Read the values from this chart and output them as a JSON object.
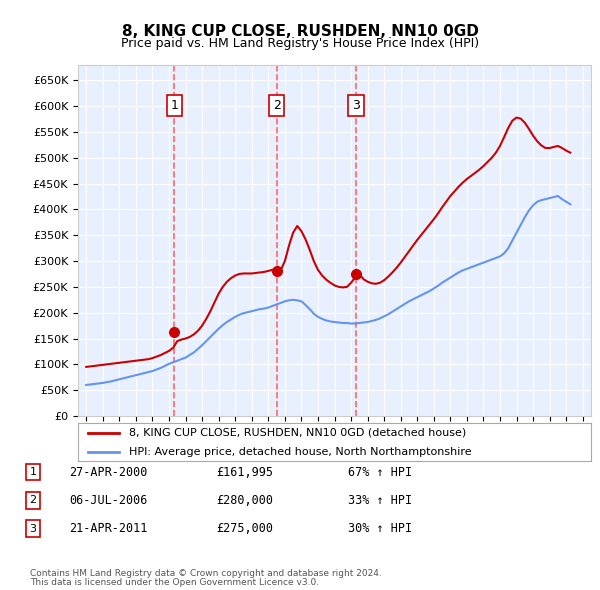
{
  "title": "8, KING CUP CLOSE, RUSHDEN, NN10 0GD",
  "subtitle": "Price paid vs. HM Land Registry's House Price Index (HPI)",
  "legend_line1": "8, KING CUP CLOSE, RUSHDEN, NN10 0GD (detached house)",
  "legend_line2": "HPI: Average price, detached house, North Northamptonshire",
  "footnote1": "Contains HM Land Registry data © Crown copyright and database right 2024.",
  "footnote2": "This data is licensed under the Open Government Licence v3.0.",
  "transactions": [
    {
      "num": 1,
      "date": "27-APR-2000",
      "price": "£161,995",
      "change": "67% ↑ HPI",
      "year": 2000.32,
      "price_val": 161995
    },
    {
      "num": 2,
      "date": "06-JUL-2006",
      "price": "£280,000",
      "change": "33% ↑ HPI",
      "year": 2006.51,
      "price_val": 280000
    },
    {
      "num": 3,
      "date": "21-APR-2011",
      "price": "£275,000",
      "change": "30% ↑ HPI",
      "year": 2011.3,
      "price_val": 275000
    }
  ],
  "hpi_color": "#6495ED",
  "price_color": "#CC0000",
  "vline_color": "#FF6666",
  "background_color": "#E8F0FF",
  "grid_color": "#FFFFFF",
  "ylim": [
    0,
    680000
  ],
  "xlim_start": 1994.5,
  "xlim_end": 2025.5,
  "hpi_x": [
    1995.0,
    1995.25,
    1995.5,
    1995.75,
    1996.0,
    1996.25,
    1996.5,
    1996.75,
    1997.0,
    1997.25,
    1997.5,
    1997.75,
    1998.0,
    1998.25,
    1998.5,
    1998.75,
    1999.0,
    1999.25,
    1999.5,
    1999.75,
    2000.0,
    2000.25,
    2000.5,
    2000.75,
    2001.0,
    2001.25,
    2001.5,
    2001.75,
    2002.0,
    2002.25,
    2002.5,
    2002.75,
    2003.0,
    2003.25,
    2003.5,
    2003.75,
    2004.0,
    2004.25,
    2004.5,
    2004.75,
    2005.0,
    2005.25,
    2005.5,
    2005.75,
    2006.0,
    2006.25,
    2006.5,
    2006.75,
    2007.0,
    2007.25,
    2007.5,
    2007.75,
    2008.0,
    2008.25,
    2008.5,
    2008.75,
    2009.0,
    2009.25,
    2009.5,
    2009.75,
    2010.0,
    2010.25,
    2010.5,
    2010.75,
    2011.0,
    2011.25,
    2011.5,
    2011.75,
    2012.0,
    2012.25,
    2012.5,
    2012.75,
    2013.0,
    2013.25,
    2013.5,
    2013.75,
    2014.0,
    2014.25,
    2014.5,
    2014.75,
    2015.0,
    2015.25,
    2015.5,
    2015.75,
    2016.0,
    2016.25,
    2016.5,
    2016.75,
    2017.0,
    2017.25,
    2017.5,
    2017.75,
    2018.0,
    2018.25,
    2018.5,
    2018.75,
    2019.0,
    2019.25,
    2019.5,
    2019.75,
    2020.0,
    2020.25,
    2020.5,
    2020.75,
    2021.0,
    2021.25,
    2021.5,
    2021.75,
    2022.0,
    2022.25,
    2022.5,
    2022.75,
    2023.0,
    2023.25,
    2023.5,
    2023.75,
    2024.0,
    2024.25
  ],
  "hpi_y": [
    60000,
    61000,
    62000,
    63000,
    64000,
    65500,
    67000,
    69000,
    71000,
    73000,
    75000,
    77000,
    79000,
    81000,
    83000,
    85000,
    87000,
    90000,
    93000,
    97000,
    101000,
    104000,
    107000,
    110000,
    113000,
    118000,
    123000,
    130000,
    137000,
    145000,
    153000,
    161000,
    169000,
    176000,
    182000,
    187000,
    192000,
    196000,
    199000,
    201000,
    203000,
    205000,
    207000,
    208000,
    210000,
    213000,
    216000,
    219000,
    222000,
    224000,
    225000,
    224000,
    222000,
    215000,
    207000,
    198000,
    192000,
    188000,
    185000,
    183000,
    182000,
    181000,
    180000,
    180000,
    179000,
    179000,
    180000,
    181000,
    182000,
    184000,
    186000,
    189000,
    193000,
    197000,
    202000,
    207000,
    212000,
    217000,
    222000,
    226000,
    230000,
    234000,
    238000,
    242000,
    247000,
    252000,
    258000,
    263000,
    268000,
    273000,
    278000,
    282000,
    285000,
    288000,
    291000,
    294000,
    297000,
    300000,
    303000,
    306000,
    309000,
    315000,
    325000,
    340000,
    355000,
    370000,
    385000,
    398000,
    408000,
    415000,
    418000,
    420000,
    422000,
    424000,
    426000,
    420000,
    415000,
    410000
  ],
  "price_x": [
    1995.0,
    1995.25,
    1995.5,
    1995.75,
    1996.0,
    1996.25,
    1996.5,
    1996.75,
    1997.0,
    1997.25,
    1997.5,
    1997.75,
    1998.0,
    1998.25,
    1998.5,
    1998.75,
    1999.0,
    1999.25,
    1999.5,
    1999.75,
    2000.0,
    2000.25,
    2000.5,
    2000.75,
    2001.0,
    2001.25,
    2001.5,
    2001.75,
    2002.0,
    2002.25,
    2002.5,
    2002.75,
    2003.0,
    2003.25,
    2003.5,
    2003.75,
    2004.0,
    2004.25,
    2004.5,
    2004.75,
    2005.0,
    2005.25,
    2005.5,
    2005.75,
    2006.0,
    2006.25,
    2006.5,
    2006.75,
    2007.0,
    2007.25,
    2007.5,
    2007.75,
    2008.0,
    2008.25,
    2008.5,
    2008.75,
    2009.0,
    2009.25,
    2009.5,
    2009.75,
    2010.0,
    2010.25,
    2010.5,
    2010.75,
    2011.0,
    2011.25,
    2011.5,
    2011.75,
    2012.0,
    2012.25,
    2012.5,
    2012.75,
    2013.0,
    2013.25,
    2013.5,
    2013.75,
    2014.0,
    2014.25,
    2014.5,
    2014.75,
    2015.0,
    2015.25,
    2015.5,
    2015.75,
    2016.0,
    2016.25,
    2016.5,
    2016.75,
    2017.0,
    2017.25,
    2017.5,
    2017.75,
    2018.0,
    2018.25,
    2018.5,
    2018.75,
    2019.0,
    2019.25,
    2019.5,
    2019.75,
    2020.0,
    2020.25,
    2020.5,
    2020.75,
    2021.0,
    2021.25,
    2021.5,
    2021.75,
    2022.0,
    2022.25,
    2022.5,
    2022.75,
    2023.0,
    2023.25,
    2023.5,
    2023.75,
    2024.0,
    2024.25
  ],
  "price_y": [
    95000,
    96000,
    97000,
    98000,
    99000,
    100000,
    101000,
    102000,
    103000,
    104000,
    105000,
    106000,
    107000,
    108000,
    109000,
    110000,
    112000,
    115000,
    118000,
    122000,
    126000,
    132000,
    145000,
    148000,
    150000,
    153000,
    158000,
    165000,
    175000,
    188000,
    203000,
    220000,
    237000,
    250000,
    260000,
    267000,
    272000,
    275000,
    276000,
    276000,
    276000,
    277000,
    278000,
    279000,
    281000,
    283000,
    280000,
    282000,
    300000,
    330000,
    355000,
    368000,
    358000,
    342000,
    322000,
    300000,
    283000,
    272000,
    264000,
    258000,
    253000,
    250000,
    249000,
    250000,
    258000,
    268000,
    275000,
    265000,
    260000,
    257000,
    256000,
    258000,
    263000,
    270000,
    278000,
    287000,
    297000,
    308000,
    319000,
    330000,
    341000,
    351000,
    361000,
    371000,
    381000,
    392000,
    404000,
    415000,
    426000,
    435000,
    444000,
    452000,
    459000,
    465000,
    471000,
    477000,
    484000,
    492000,
    500000,
    510000,
    523000,
    540000,
    558000,
    572000,
    578000,
    576000,
    568000,
    556000,
    543000,
    532000,
    524000,
    519000,
    519000,
    521000,
    523000,
    519000,
    514000,
    510000
  ]
}
